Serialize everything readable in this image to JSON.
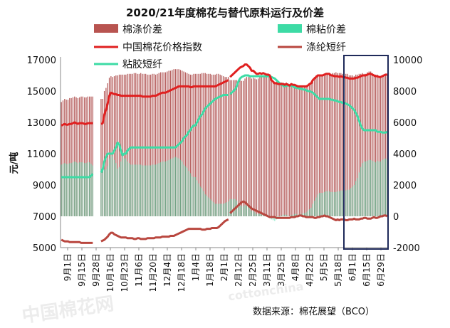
{
  "chart_data": {
    "type": "bar",
    "title": "2020/21年度棉花与替代原料运行及价差",
    "ylabel": "元/吨",
    "source_note": "数据来源：棉花展望（BCO）",
    "watermark": "中国棉花网 cottonchina",
    "left_axis": {
      "ylim": [
        5000,
        17000
      ],
      "ticks": [
        "5000",
        "7000",
        "9000",
        "11000",
        "13000",
        "15000",
        "17000"
      ]
    },
    "right_axis": {
      "ylim": [
        -2000,
        10000
      ],
      "ticks": [
        "-2000",
        "0",
        "2000",
        "4000",
        "6000",
        "8000",
        "10000"
      ]
    },
    "x_ticks": [
      "9月1日",
      "9月15日",
      "9月28日",
      "10月16日",
      "10月23日",
      "11月6日",
      "11月20日",
      "12月4日",
      "12月18日",
      "1月4日",
      "1月18日",
      "2月1日",
      "2月12日",
      "2月25日",
      "3月11日",
      "3月25日",
      "4月8日",
      "4月22日",
      "5月5日",
      "5月18日",
      "6月1日",
      "6月15日",
      "6月29日"
    ],
    "legend": [
      {
        "name": "棉涤价差",
        "kind": "bar",
        "color": "#b85450"
      },
      {
        "name": "棉粘价差",
        "kind": "bar",
        "color": "#3ddba5"
      },
      {
        "name": "中国棉花价格指数",
        "kind": "line",
        "color": "#e02020"
      },
      {
        "name": "涤纶短纤",
        "kind": "line",
        "color": "#b9473f"
      },
      {
        "name": "粘胶短纤",
        "kind": "line",
        "color": "#3ddba5"
      }
    ],
    "segments": [
      {
        "from": 0,
        "to": 19,
        "cotton": [
          12800,
          12850,
          12900,
          12850,
          12850,
          12900,
          12900,
          12950,
          13000,
          12950,
          12900,
          12950,
          12950,
          12950,
          12900,
          12900,
          12950,
          12950,
          12950,
          12950
        ],
        "polyester": [
          5500,
          5450,
          5400,
          5400,
          5400,
          5350,
          5350,
          5350,
          5350,
          5350,
          5350,
          5350,
          5300,
          5300,
          5300,
          5300,
          5300,
          5300,
          5300,
          5300
        ],
        "viscose": [
          9500,
          9500,
          9500,
          9500,
          9500,
          9500,
          9500,
          9500,
          9500,
          9500,
          9500,
          9500,
          9500,
          9500,
          9500,
          9500,
          9500,
          9500,
          9600,
          9700
        ]
      },
      {
        "from": 24,
        "to": 101,
        "cotton": [
          12900,
          12950,
          13500,
          13800,
          14200,
          14700,
          14900,
          14850,
          14800,
          14800,
          14750,
          14750,
          14700,
          14700,
          14700,
          14700,
          14700,
          14700,
          14700,
          14700,
          14700,
          14700,
          14700,
          14700,
          14700,
          14650,
          14650,
          14650,
          14650,
          14650,
          14650,
          14700,
          14700,
          14700,
          14750,
          14800,
          14850,
          14900,
          14900,
          14900,
          14950,
          15000,
          15050,
          15100,
          15150,
          15200,
          15250,
          15300,
          15300,
          15300,
          15300,
          15300,
          15300,
          15300,
          15250,
          15250,
          15300,
          15300,
          15300,
          15300,
          15300,
          15300,
          15300,
          15300,
          15300,
          15300,
          15300,
          15300,
          15300,
          15300,
          15350,
          15400,
          15450,
          15500,
          15550,
          15600,
          15650,
          15700
        ],
        "polyester": [
          5400,
          5450,
          5500,
          5600,
          5700,
          5850,
          5950,
          5950,
          5850,
          5800,
          5750,
          5700,
          5650,
          5650,
          5650,
          5650,
          5600,
          5600,
          5600,
          5600,
          5550,
          5550,
          5600,
          5600,
          5550,
          5550,
          5550,
          5550,
          5600,
          5600,
          5600,
          5600,
          5600,
          5650,
          5650,
          5650,
          5650,
          5700,
          5700,
          5700,
          5700,
          5700,
          5750,
          5750,
          5750,
          5800,
          5850,
          5900,
          5950,
          6000,
          6050,
          6100,
          6150,
          6200,
          6200,
          6200,
          6200,
          6200,
          6200,
          6200,
          6200,
          6150,
          6150,
          6150,
          6200,
          6200,
          6200,
          6250,
          6250,
          6250,
          6250,
          6300,
          6400,
          6500,
          6600,
          6700,
          6750,
          6800
        ],
        "viscose": [
          9800,
          10000,
          10500,
          10800,
          11000,
          11000,
          11000,
          11000,
          11200,
          11400,
          11700,
          11600,
          11200,
          10900,
          11000,
          11000,
          11200,
          11300,
          11400,
          11400,
          11400,
          11400,
          11400,
          11400,
          11400,
          11400,
          11400,
          11400,
          11400,
          11400,
          11400,
          11400,
          11400,
          11400,
          11400,
          11400,
          11400,
          11400,
          11400,
          11400,
          11400,
          11400,
          11400,
          11400,
          11400,
          11400,
          11500,
          11600,
          11700,
          11800,
          12000,
          12100,
          12200,
          12400,
          12500,
          12700,
          12800,
          12800,
          13000,
          13200,
          13400,
          13500,
          13700,
          13900,
          14000,
          14100,
          14200,
          14300,
          14400,
          14500,
          14550,
          14600,
          14650,
          14700,
          14750,
          14750,
          14750,
          14750
        ]
      },
      {
        "from": 102,
        "to": 197,
        "cotton": [
          15900,
          16000,
          16100,
          16200,
          16300,
          16400,
          16500,
          16550,
          16600,
          16700,
          16700,
          16600,
          16500,
          16300,
          16300,
          16200,
          16100,
          16100,
          16150,
          16100,
          16150,
          16100,
          16050,
          16050,
          16000,
          15700,
          15600,
          15500,
          15500,
          15450,
          15450,
          15450,
          15450,
          15400,
          15450,
          15400,
          15350,
          15450,
          15400,
          15400,
          15350,
          15300,
          15300,
          15300,
          15300,
          15300,
          15300,
          15350,
          15450,
          15500,
          15700,
          15800,
          15900,
          16000,
          16000,
          16000,
          16000,
          16050,
          16100,
          16100,
          16100,
          16000,
          16000,
          15950,
          15950,
          15950,
          15900,
          15950,
          15900,
          15900,
          15850,
          15850,
          15800,
          15800,
          15800,
          15800,
          15850,
          15850,
          15900,
          15950,
          16000,
          16000,
          16000,
          16050,
          16100,
          16100,
          16050,
          16000,
          15950,
          15950,
          15900,
          15900,
          15950,
          16000,
          16050,
          16050
        ],
        "polyester": [
          7200,
          7300,
          7400,
          7500,
          7600,
          7700,
          7800,
          7900,
          7950,
          7900,
          7800,
          7700,
          7600,
          7500,
          7450,
          7400,
          7350,
          7300,
          7250,
          7200,
          7150,
          7100,
          7050,
          7000,
          6950,
          6950,
          6950,
          6950,
          6900,
          6900,
          6900,
          6900,
          6900,
          6900,
          6900,
          6900,
          6900,
          6950,
          6950,
          6950,
          7000,
          7000,
          7050,
          7050,
          7000,
          7000,
          6950,
          6950,
          6950,
          6950,
          6950,
          6900,
          6900,
          6950,
          6950,
          7000,
          7000,
          7050,
          7000,
          7000,
          6950,
          6900,
          6850,
          6800,
          6750,
          6800,
          6750,
          6800,
          6800,
          6800,
          6750,
          6750,
          6800,
          6800,
          6800,
          6850,
          6800,
          6800,
          6800,
          6850,
          6850,
          6900,
          6900,
          6850,
          6850,
          6850,
          6900,
          6950,
          6900,
          6900,
          6950,
          7000,
          7000,
          7050,
          7050,
          7000
        ],
        "viscose": [
          14800,
          14900,
          15000,
          15100,
          15300,
          15600,
          15800,
          15900,
          15950,
          16000,
          16000,
          16000,
          15950,
          15950,
          15950,
          15950,
          15950,
          15950,
          15950,
          15950,
          15950,
          15950,
          15950,
          15950,
          15950,
          15900,
          15850,
          15800,
          15700,
          15600,
          15500,
          15400,
          15350,
          15300,
          15350,
          15350,
          15350,
          15350,
          15300,
          15250,
          15200,
          15200,
          15150,
          15150,
          15100,
          15100,
          15050,
          15000,
          15000,
          14950,
          14900,
          14800,
          14700,
          14600,
          14500,
          14500,
          14500,
          14500,
          14500,
          14500,
          14500,
          14450,
          14450,
          14400,
          14400,
          14350,
          14300,
          14300,
          14250,
          14250,
          14200,
          14150,
          14100,
          14000,
          13900,
          13800,
          13600,
          13400,
          13100,
          12800,
          12600,
          12500,
          12500,
          12500,
          12500,
          12500,
          12500,
          12500,
          12500,
          12400,
          12400,
          12400,
          12350,
          12350,
          12350,
          12400
        ]
      }
    ]
  }
}
